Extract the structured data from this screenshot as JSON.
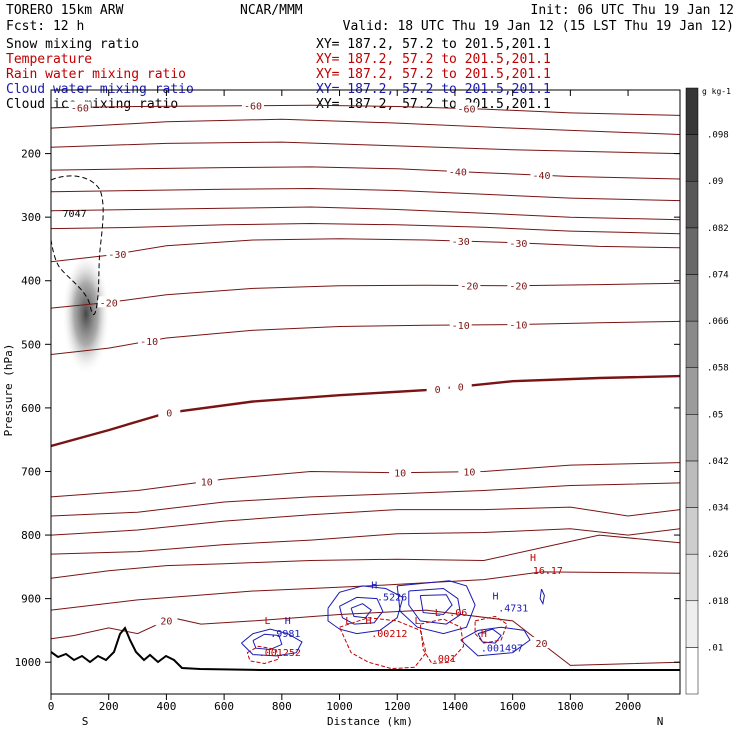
{
  "header": {
    "model_line": "TORERO  15km ARW",
    "org": "NCAR/MMM",
    "init": "Init: 06 UTC Thu 19 Jan 12",
    "fcst": "Fcst:   12 h",
    "valid": "Valid: 18 UTC Thu 19 Jan 12 (15 LST Thu 19 Jan 12)"
  },
  "fields": [
    {
      "name": "Snow mixing ratio",
      "xy": "XY= 187.2, 57.2 to 201.5,201.1",
      "color": "#000000"
    },
    {
      "name": "Temperature",
      "xy": "XY= 187.2, 57.2 to 201.5,201.1",
      "color": "#c00000"
    },
    {
      "name": "Rain water mixing ratio",
      "xy": "XY= 187.2, 57.2 to 201.5,201.1",
      "color": "#c00000"
    },
    {
      "name": "Cloud water mixing ratio",
      "xy": "XY= 187.2, 57.2 to 201.5,201.1",
      "color": "#1a1ab4"
    },
    {
      "name": "Cloud ice mixing ratio",
      "xy": "XY= 187.2, 57.2 to 201.5,201.1",
      "color": "#000000"
    }
  ],
  "chart_data": {
    "type": "contour",
    "xlabel": "Distance (km)",
    "ylabel": "Pressure (hPa)",
    "xlim": [
      0,
      2180
    ],
    "ylim": [
      1050,
      100
    ],
    "x_ticks": [
      0,
      200,
      400,
      600,
      800,
      1000,
      1200,
      1400,
      1600,
      1800,
      2000
    ],
    "y_ticks": [
      200,
      300,
      400,
      500,
      600,
      700,
      800,
      900,
      1000
    ],
    "y_tick_labels": [
      "200",
      "300",
      "400",
      "500",
      "600",
      "700",
      "800",
      "900",
      "1000"
    ],
    "endpoint_labels": {
      "left": "S",
      "right": "N"
    },
    "colorbar": {
      "units": "g kg-1",
      "levels": [
        0.01,
        0.018,
        0.026,
        0.034,
        0.042,
        0.05,
        0.058,
        0.066,
        0.074,
        0.082,
        0.09,
        0.098
      ],
      "labels": [
        ".01",
        ".018",
        ".026",
        ".034",
        ".042",
        ".05",
        ".058",
        ".066",
        ".074",
        ".082",
        ".09",
        ".098"
      ]
    },
    "temperature_contours": [
      {
        "value": -60,
        "label": "-60",
        "label_xs": [
          100,
          700,
          1440
        ]
      },
      {
        "value": -40,
        "label": "-40",
        "label_xs": [
          1410,
          1700
        ]
      },
      {
        "value": -30,
        "label": "-30",
        "label_xs": [
          230,
          1420,
          1620
        ]
      },
      {
        "value": -20,
        "label": "-20",
        "label_xs": [
          200,
          1450,
          1620
        ]
      },
      {
        "value": -10,
        "label": "-10",
        "label_xs": [
          340,
          1420,
          1620
        ]
      },
      {
        "value": 0,
        "label": "0",
        "label_xs": [
          410,
          1340,
          1420
        ]
      },
      {
        "value": 10,
        "label": "10",
        "label_xs": [
          540,
          1210,
          1450
        ]
      },
      {
        "value": 20,
        "label": "20",
        "label_xs": [
          400,
          1700
        ]
      }
    ],
    "annotations": [
      {
        "text": "7047",
        "x": 40,
        "p": 300,
        "color": "#000000"
      },
      {
        "text": "H",
        "x": 1660,
        "p": 841,
        "color": "#c00000"
      },
      {
        "text": "16.17",
        "x": 1670,
        "p": 861,
        "color": "#c00000"
      },
      {
        "text": "H",
        "x": 1110,
        "p": 884,
        "color": "#1a1ab4"
      },
      {
        "text": ".5226",
        "x": 1130,
        "p": 903,
        "color": "#1a1ab4"
      },
      {
        "text": "H",
        "x": 1530,
        "p": 901,
        "color": "#1a1ab4"
      },
      {
        "text": ".4731",
        "x": 1550,
        "p": 920,
        "color": "#1a1ab4"
      },
      {
        "text": "L",
        "x": 1330,
        "p": 927,
        "color": "#c00000"
      },
      {
        "text": ".06",
        "x": 1380,
        "p": 927,
        "color": "#c00000"
      },
      {
        "text": "L",
        "x": 740,
        "p": 940,
        "color": "#c00000"
      },
      {
        "text": "H",
        "x": 810,
        "p": 940,
        "color": "#1a1ab4"
      },
      {
        "text": "L",
        "x": 1020,
        "p": 940,
        "color": "#c00000"
      },
      {
        "text": "H",
        "x": 1090,
        "p": 940,
        "color": "#c00000"
      },
      {
        "text": "L",
        "x": 1260,
        "p": 940,
        "color": "#c00000"
      },
      {
        "text": ".9981",
        "x": 760,
        "p": 960,
        "color": "#1a1ab4"
      },
      {
        "text": ".00212",
        "x": 1110,
        "p": 960,
        "color": "#c00000"
      },
      {
        "text": "H",
        "x": 1490,
        "p": 960,
        "color": "#c00000"
      },
      {
        "text": ".001497",
        "x": 1490,
        "p": 983,
        "color": "#1a1ab4"
      },
      {
        "text": ".001252",
        "x": 720,
        "p": 990,
        "color": "#c00000"
      },
      {
        "text": ".001",
        "x": 1320,
        "p": 1000,
        "color": "#c00000"
      }
    ]
  }
}
